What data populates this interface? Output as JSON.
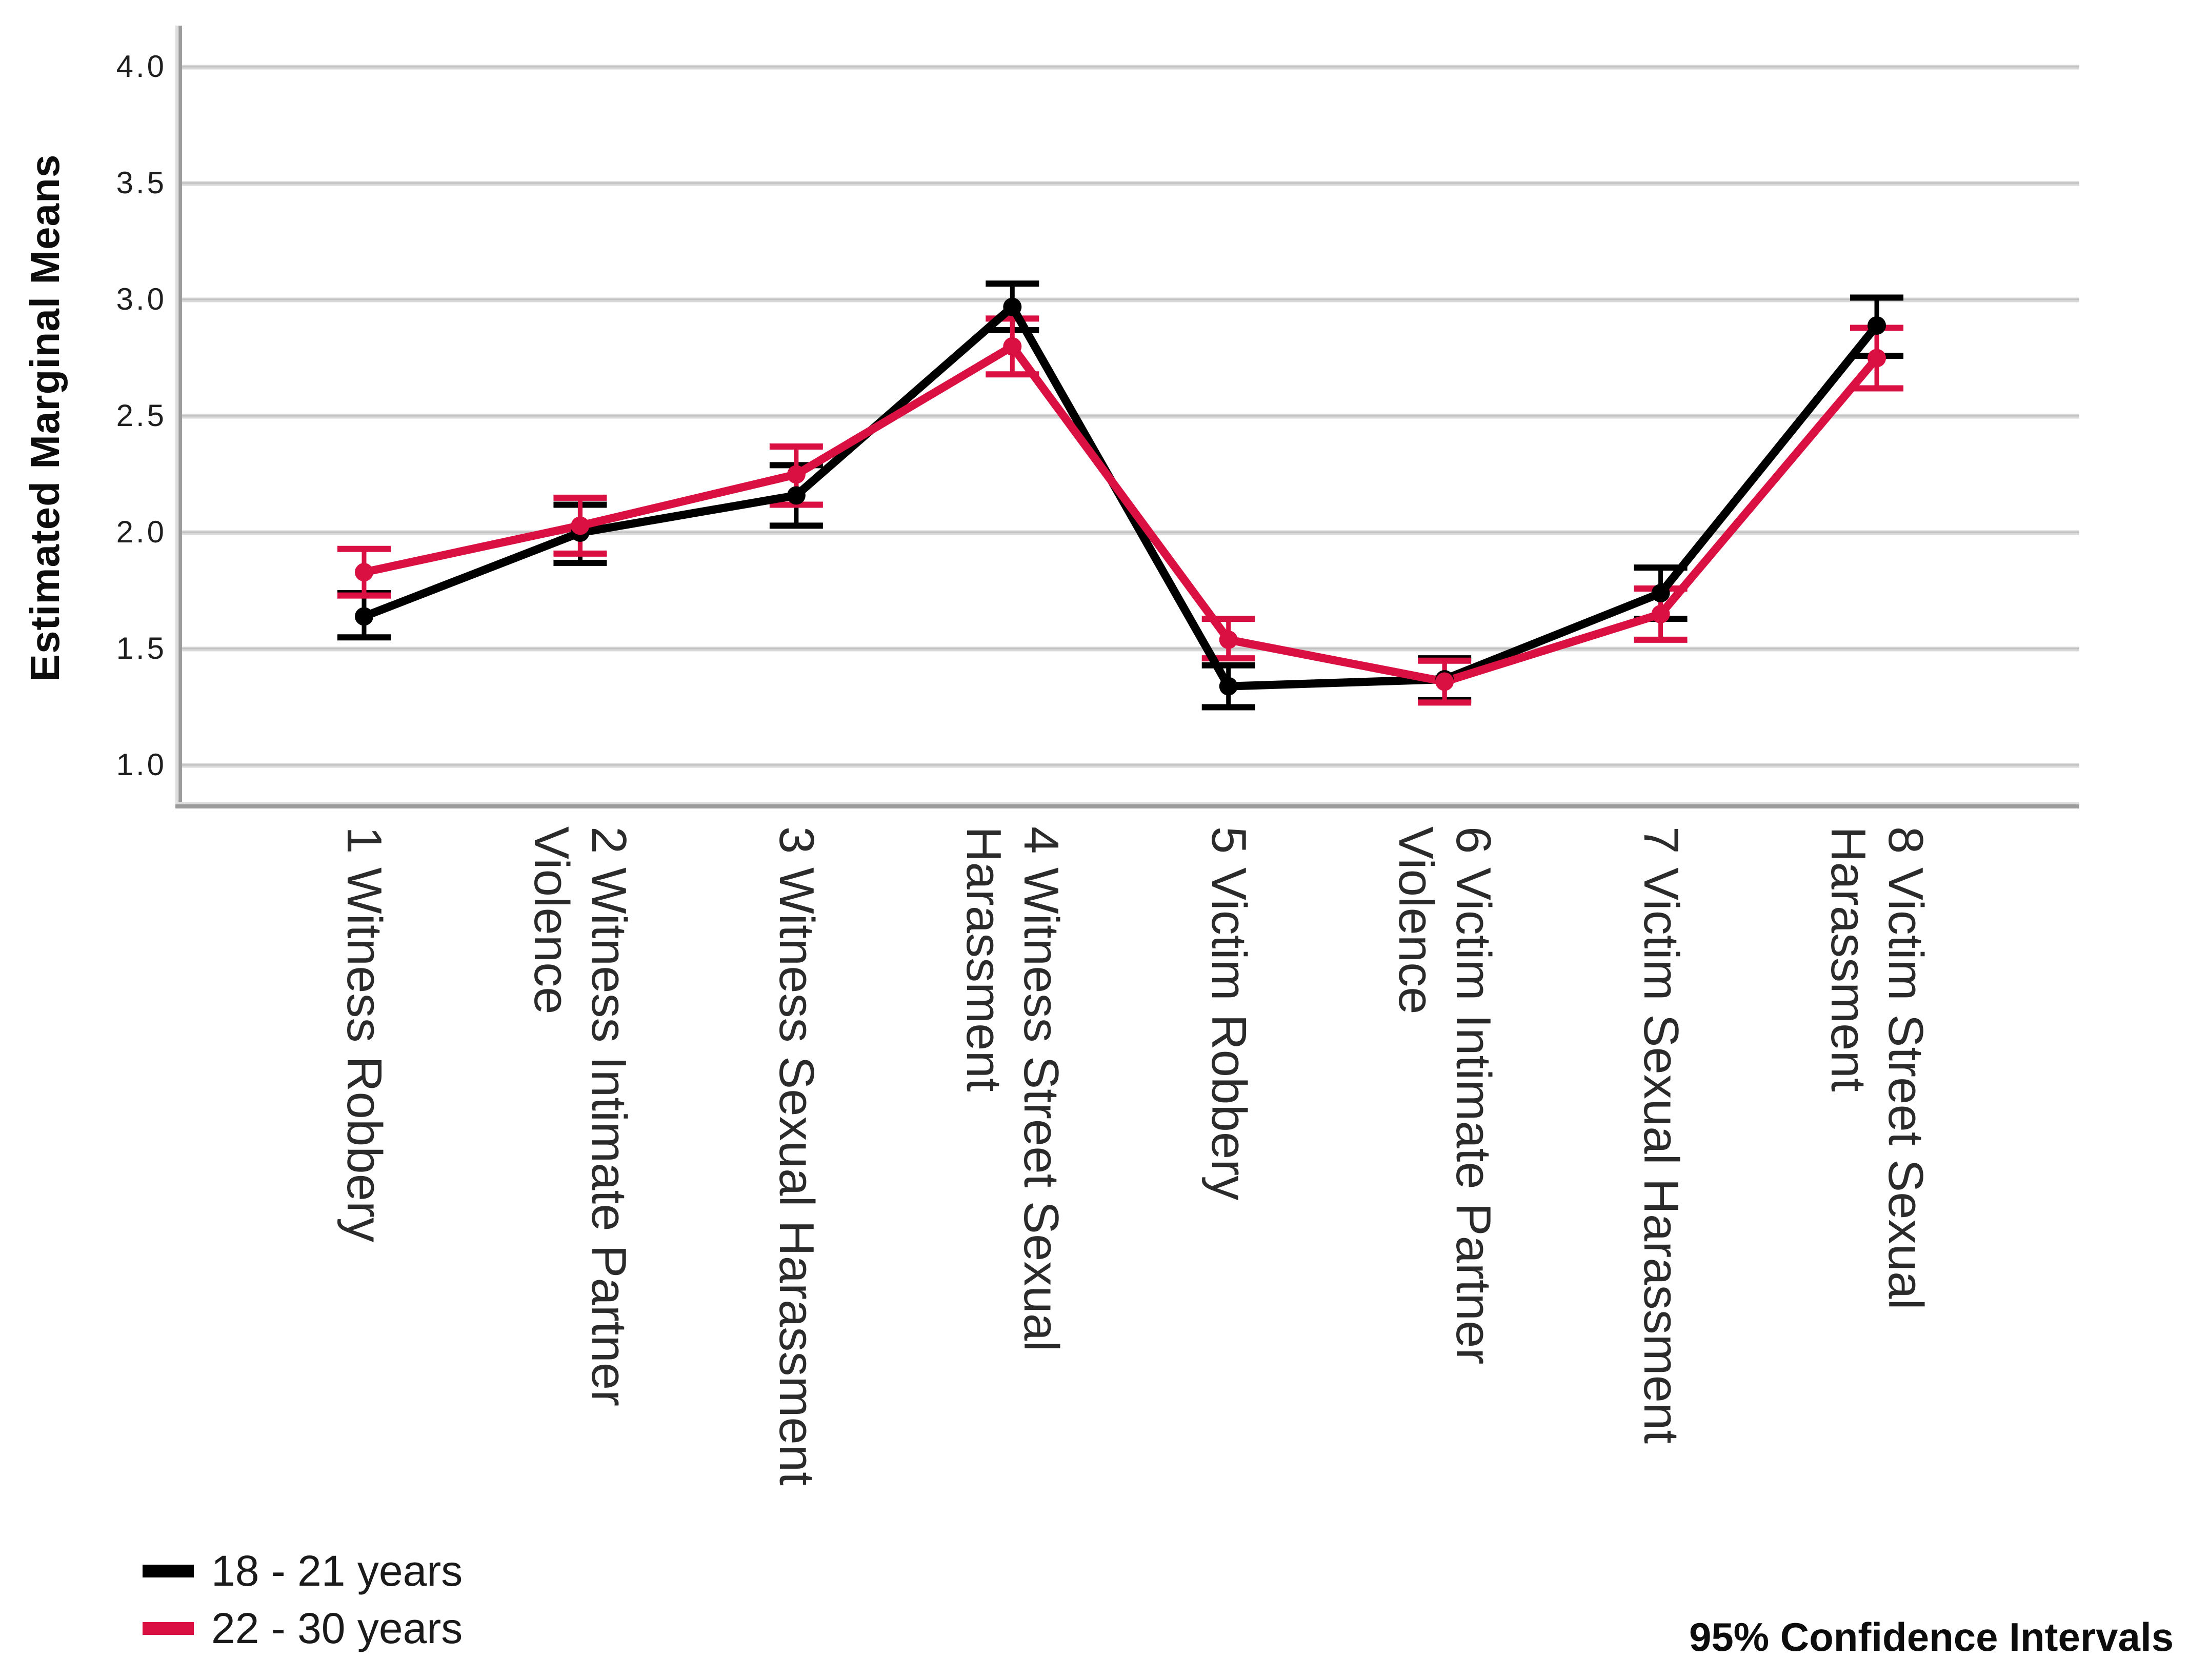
{
  "chart_data": {
    "type": "line",
    "title": "",
    "ylabel": "Estimated Marginal Means",
    "xlabel": "",
    "footnote": "95% Confidence Intervals",
    "ylim": [
      1.0,
      4.0
    ],
    "yticks": [
      {
        "value": 4.0,
        "label": "4.0"
      },
      {
        "value": 3.5,
        "label": "3.5"
      },
      {
        "value": 3.0,
        "label": "3.0"
      },
      {
        "value": 2.5,
        "label": "2.5"
      },
      {
        "value": 2.0,
        "label": "2.0"
      },
      {
        "value": 1.5,
        "label": "1.5"
      },
      {
        "value": 1.0,
        "label": "1.0"
      }
    ],
    "grid": "horizontal",
    "legend_position": "bottom-left",
    "error_bars": "95% confidence intervals",
    "categories": [
      {
        "label": "1 Witness Robbery",
        "lines": [
          "1 Witness Robbery"
        ]
      },
      {
        "label": "2 Witness Intimate Partner Violence",
        "lines": [
          "2 Witness Intimate Partner",
          "Violence"
        ]
      },
      {
        "label": "3 Witness Sexual Harassment",
        "lines": [
          "3 Witness Sexual Harassment"
        ]
      },
      {
        "label": "4 Witness Street Sexual Harassment",
        "lines": [
          "4 Witness Street Sexual",
          "Harassment"
        ]
      },
      {
        "label": "5 Victim Robbery",
        "lines": [
          "5 Victim Robbery"
        ]
      },
      {
        "label": "6 Victim Intimate Partner Violence",
        "lines": [
          "6 Victim Intimate Partner",
          "Violence"
        ]
      },
      {
        "label": "7 Victim Sexual Harassment",
        "lines": [
          "7 Victim Sexual Harassment"
        ]
      },
      {
        "label": "8 Victim Street Sexual Harassment",
        "lines": [
          "8 Victim Street Sexual",
          "Harassment"
        ]
      }
    ],
    "series": [
      {
        "name": "18 - 21 years",
        "color": "#000000",
        "values": [
          1.64,
          2.0,
          2.16,
          2.97,
          1.34,
          1.37,
          1.74,
          2.89
        ],
        "ci_low": [
          1.55,
          1.87,
          2.03,
          2.87,
          1.25,
          1.28,
          1.63,
          2.76
        ],
        "ci_high": [
          1.74,
          2.12,
          2.29,
          3.07,
          1.43,
          1.46,
          1.85,
          3.01
        ]
      },
      {
        "name": "22 - 30 years",
        "color": "#DA1043",
        "values": [
          1.83,
          2.03,
          2.25,
          2.8,
          1.54,
          1.36,
          1.65,
          2.75
        ],
        "ci_low": [
          1.73,
          1.91,
          2.12,
          2.68,
          1.46,
          1.27,
          1.54,
          2.62
        ],
        "ci_high": [
          1.93,
          2.15,
          2.37,
          2.92,
          1.63,
          1.45,
          1.76,
          2.88
        ]
      }
    ],
    "colors": {
      "gridline": "#D9D9D9",
      "gridline_core": "#C2C2C2",
      "axis_frame": "#9C9C9C",
      "axis_frame_light": "#DEDEDE",
      "text": "#1f1f1f"
    }
  }
}
